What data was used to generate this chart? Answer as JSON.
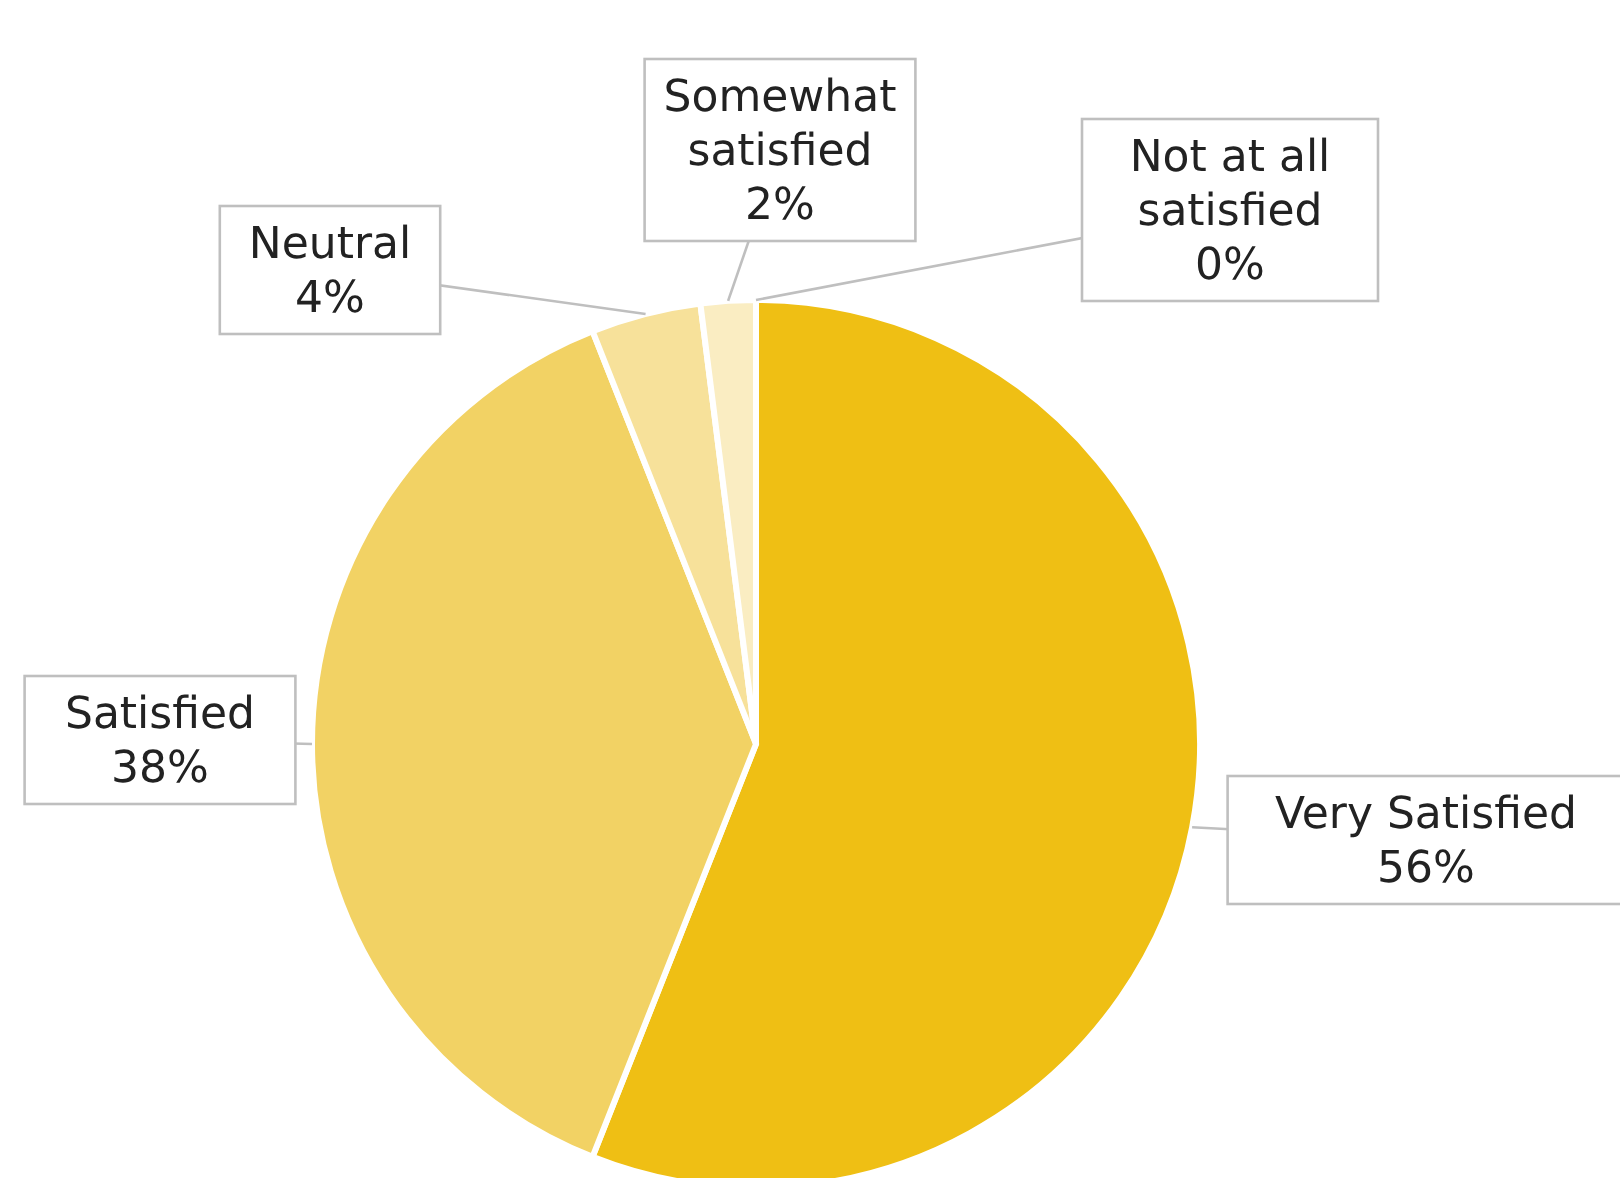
{
  "chart_data": {
    "type": "pie",
    "categories": [
      "Very Satisfied",
      "Satisfied",
      "Neutral",
      "Somewhat satisfied",
      "Not at all satisfied"
    ],
    "values": [
      56,
      38,
      4,
      2,
      0
    ],
    "value_labels": [
      "56%",
      "38%",
      "4%",
      "2%",
      "0%"
    ],
    "colors": [
      "#efbf14",
      "#f2d264",
      "#f7e19a",
      "#faedc2",
      "#fdf8e5"
    ],
    "legend": false
  }
}
